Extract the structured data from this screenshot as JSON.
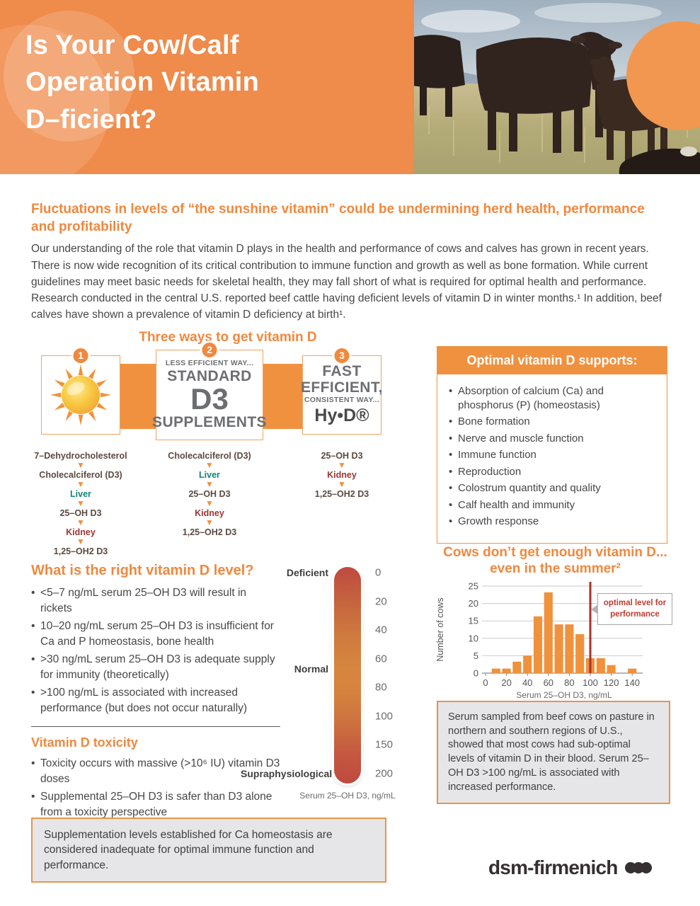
{
  "header": {
    "title": "Is Your Cow/Calf\nOperation Vitamin\nD–ficient?"
  },
  "intro": {
    "heading": "Fluctuations in levels of “the sunshine vitamin” could be undermining herd health, performance and profitability",
    "body": "Our understanding of the role that vitamin D plays in the health and performance of cows and calves has grown in recent years. There is now wide recognition of its critical contribution to immune function and growth as well as bone formation. While current guidelines may meet basic needs for skeletal health, they may fall short of what is required for optimal health and performance. Research conducted in the central U.S. reported beef cattle having deficient levels of vitamin D in winter months.¹ In addition, beef calves have shown a prevalence of vitamin D deficiency at birth¹."
  },
  "three_ways": {
    "title": "Three ways to get vitamin D",
    "ways": [
      {
        "number": "1",
        "icon": "sun-icon",
        "lines": [],
        "pathway": [
          {
            "label": "7–Dehydrocholesterol",
            "style": "plain"
          },
          {
            "label": "Cholecalciferol (D3)",
            "style": "plain"
          },
          {
            "label": "Liver",
            "style": "liver"
          },
          {
            "label": "25–OH D3",
            "style": "plain"
          },
          {
            "label": "Kidney",
            "style": "kidney"
          },
          {
            "label": "1,25–OH2 D3",
            "style": "plain"
          }
        ]
      },
      {
        "number": "2",
        "icon": null,
        "lines": [
          {
            "text": "LESS EFFICIENT WAY...",
            "cls": "w-line-small"
          },
          {
            "text": "STANDARD",
            "cls": "w-line-big"
          },
          {
            "text": "D3",
            "cls": "w-line-huge"
          },
          {
            "text": "SUPPLEMENTS",
            "cls": "w-line-big"
          }
        ],
        "pathway": [
          {
            "label": "Cholecalciferol (D3)",
            "style": "plain"
          },
          {
            "label": "Liver",
            "style": "liver"
          },
          {
            "label": "25–OH D3",
            "style": "plain"
          },
          {
            "label": "Kidney",
            "style": "kidney"
          },
          {
            "label": "1,25–OH2 D3",
            "style": "plain"
          }
        ]
      },
      {
        "number": "3",
        "icon": null,
        "lines": [
          {
            "text": "FAST",
            "cls": "w-line-big"
          },
          {
            "text": "EFFICIENT,",
            "cls": "w-line-big"
          },
          {
            "text": "CONSISTENT WAY...",
            "cls": "w-line-small"
          },
          {
            "text": "Hy•D®",
            "cls": "w-line-brand"
          }
        ],
        "pathway": [
          {
            "label": "25–OH D3",
            "style": "plain"
          },
          {
            "label": "Kidney",
            "style": "kidney"
          },
          {
            "label": "1,25–OH2 D3",
            "style": "plain"
          }
        ]
      }
    ]
  },
  "optimal_box": {
    "title": "Optimal vitamin D supports:",
    "items": [
      "Absorption of calcium (Ca) and phosphorus (P) (homeostasis)",
      "Bone formation",
      "Nerve and muscle function",
      "Immune function",
      "Reproduction",
      "Colostrum quantity and quality",
      "Calf health and immunity",
      "Growth response"
    ]
  },
  "right_level": {
    "heading": "What is the right vitamin D level?",
    "items": [
      "<5–7 ng/mL serum 25–OH D3 will result in rickets",
      "10–20 ng/mL serum 25–OH D3 is insufficient for Ca and P homeostasis, bone health",
      ">30 ng/mL serum 25–OH D3 is adequate supply for immunity (theoretically)",
      ">100 ng/mL is associated with increased performance (but does not occur naturally)"
    ]
  },
  "toxicity": {
    "heading": "Vitamin D toxicity",
    "items": [
      "Toxicity occurs with massive (>10⁶ IU) vitamin D3 doses",
      "Supplemental 25–OH D3 is safer than D3 alone from a toxicity perspective"
    ]
  },
  "scale": {
    "zone_labels": [
      {
        "text": "Deficient",
        "pos": 0
      },
      {
        "text": "Normal",
        "pos": 0.48
      },
      {
        "text": "Supraphysiological",
        "pos": 1
      }
    ],
    "ticks": [
      "0",
      "20",
      "40",
      "60",
      "80",
      "100",
      "150",
      "200"
    ],
    "caption": "Serum 25–OH D3, ng/mL"
  },
  "chart_data": {
    "type": "bar",
    "title": "Cows don’t get enough vitamin D... even in the summer²",
    "x": [
      10,
      20,
      30,
      40,
      50,
      60,
      70,
      80,
      90,
      100,
      110,
      120,
      130,
      140
    ],
    "values": [
      1.3,
      1.3,
      3.3,
      5,
      16.3,
      23.2,
      14,
      14,
      11.2,
      4.3,
      4.3,
      2.3,
      0,
      1.3
    ],
    "xlabel": "Serum 25–OH D3, ng/mL",
    "ylabel": "Number of cows",
    "xlim": [
      0,
      150
    ],
    "ylim": [
      0,
      25
    ],
    "xticks": [
      0,
      20,
      40,
      60,
      80,
      100,
      120,
      140
    ],
    "yticks": [
      0,
      5,
      10,
      15,
      20,
      25
    ],
    "grid": true,
    "legend": "none",
    "bar_color": "#f0913c",
    "ref_line": {
      "x": 100,
      "color": "#a8322b",
      "label": "optimal level for performance",
      "label_color": "#c23b2e"
    }
  },
  "chart_note": "Serum sampled from beef cows on pasture in northern and southern regions of U.S., showed that most cows had sub-optimal levels of vitamin D in their blood. Serum 25–OH D3 >100 ng/mL is associated with increased performance.",
  "bottom_note": "Supplementation levels established for Ca homeostasis are considered inadequate for optimal immune function and performance.",
  "logo": {
    "text": "dsm-firmenich"
  }
}
